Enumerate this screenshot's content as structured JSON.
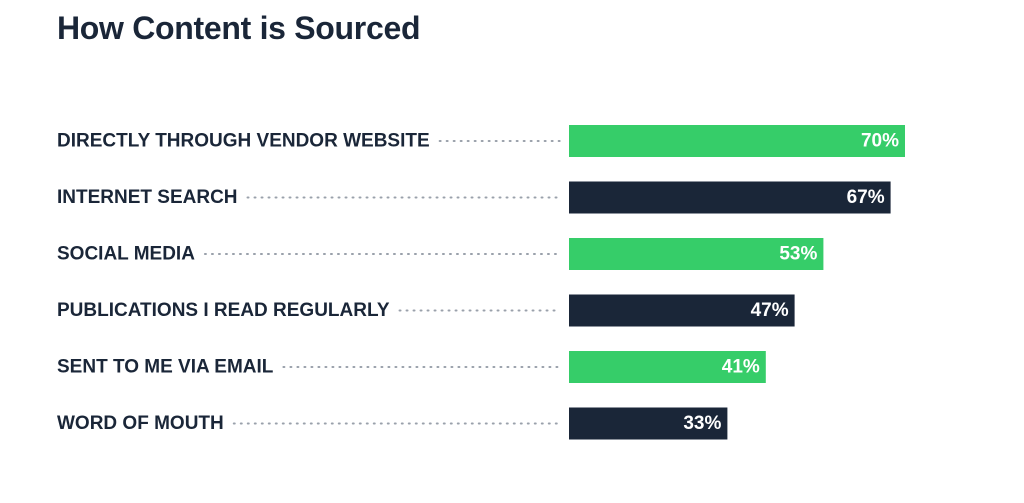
{
  "chart_data": {
    "type": "bar",
    "orientation": "horizontal",
    "title": "How Content is Sourced",
    "categories": [
      "DIRECTLY THROUGH VENDOR WEBSITE",
      "INTERNET SEARCH",
      "SOCIAL MEDIA",
      "PUBLICATIONS I READ REGULARLY",
      "SENT TO ME VIA EMAIL",
      "WORD OF MOUTH"
    ],
    "values": [
      70,
      67,
      53,
      47,
      41,
      33
    ],
    "value_labels": [
      "70%",
      "67%",
      "53%",
      "47%",
      "41%",
      "33%"
    ],
    "unit": "%",
    "xlim": [
      0,
      100
    ],
    "xlabel": "",
    "ylabel": "",
    "grid": false,
    "colors": [
      "#36cd69",
      "#1a2638",
      "#36cd69",
      "#1a2638",
      "#36cd69",
      "#1a2638"
    ]
  }
}
